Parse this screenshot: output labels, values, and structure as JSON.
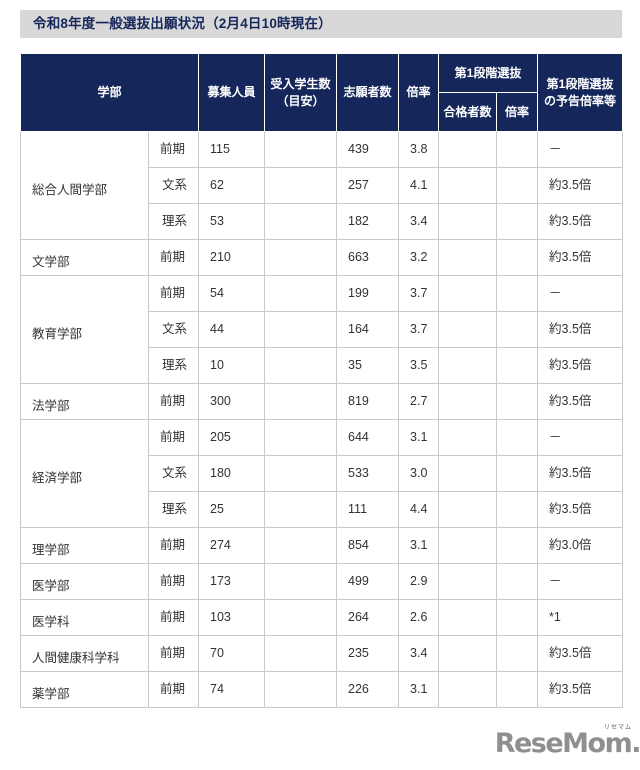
{
  "title": "令和8年度一般選抜出願状況（2月4日10時現在）",
  "colors": {
    "header_bg": "#15265b",
    "header_text": "#ffffff",
    "title_bar_bg": "#d8d8d8",
    "title_text": "#15265b",
    "body_border": "#c9c9c9",
    "faculty_cell_bg": "#f0f0f3",
    "body_text": "#333333",
    "logo_gray": "#8f8f8f"
  },
  "table": {
    "headers": {
      "gakubu": "学部",
      "capacity": "募集人員",
      "accepted_line1": "受入学生数",
      "accepted_line2": "（目安）",
      "applicants": "志願者数",
      "ratio": "倍率",
      "stage1": "第1段階選抜",
      "stage1_pass": "合格者数",
      "stage1_ratio": "倍率",
      "notice_line1": "第1段階選抜",
      "notice_line2": "の予告倍率等"
    },
    "rows": [
      {
        "faculty": "総合人間学部",
        "rowspan": 3,
        "period": "前期",
        "period_align": "left",
        "capacity": "115",
        "accepted": "",
        "applicants": "439",
        "ratio": "3.8",
        "pass": "",
        "pass_ratio": "",
        "notice": "－"
      },
      {
        "faculty": null,
        "period": "文系",
        "period_align": "right",
        "capacity": "62",
        "accepted": "",
        "applicants": "257",
        "ratio": "4.1",
        "pass": "",
        "pass_ratio": "",
        "notice": "約3.5倍"
      },
      {
        "faculty": null,
        "period": "理系",
        "period_align": "right",
        "capacity": "53",
        "accepted": "",
        "applicants": "182",
        "ratio": "3.4",
        "pass": "",
        "pass_ratio": "",
        "notice": "約3.5倍"
      },
      {
        "faculty": "文学部",
        "rowspan": 1,
        "period": "前期",
        "period_align": "left",
        "capacity": "210",
        "accepted": "",
        "applicants": "663",
        "ratio": "3.2",
        "pass": "",
        "pass_ratio": "",
        "notice": "約3.5倍"
      },
      {
        "faculty": "教育学部",
        "rowspan": 3,
        "period": "前期",
        "period_align": "left",
        "capacity": "54",
        "accepted": "",
        "applicants": "199",
        "ratio": "3.7",
        "pass": "",
        "pass_ratio": "",
        "notice": "－"
      },
      {
        "faculty": null,
        "period": "文系",
        "period_align": "right",
        "capacity": "44",
        "accepted": "",
        "applicants": "164",
        "ratio": "3.7",
        "pass": "",
        "pass_ratio": "",
        "notice": "約3.5倍"
      },
      {
        "faculty": null,
        "period": "理系",
        "period_align": "right",
        "capacity": "10",
        "accepted": "",
        "applicants": "35",
        "ratio": "3.5",
        "pass": "",
        "pass_ratio": "",
        "notice": "約3.5倍"
      },
      {
        "faculty": "法学部",
        "rowspan": 1,
        "period": "前期",
        "period_align": "left",
        "capacity": "300",
        "accepted": "",
        "applicants": "819",
        "ratio": "2.7",
        "pass": "",
        "pass_ratio": "",
        "notice": "約3.5倍"
      },
      {
        "faculty": "経済学部",
        "rowspan": 3,
        "period": "前期",
        "period_align": "left",
        "capacity": "205",
        "accepted": "",
        "applicants": "644",
        "ratio": "3.1",
        "pass": "",
        "pass_ratio": "",
        "notice": "－"
      },
      {
        "faculty": null,
        "period": "文系",
        "period_align": "right",
        "capacity": "180",
        "accepted": "",
        "applicants": "533",
        "ratio": "3.0",
        "pass": "",
        "pass_ratio": "",
        "notice": "約3.5倍"
      },
      {
        "faculty": null,
        "period": "理系",
        "period_align": "right",
        "capacity": "25",
        "accepted": "",
        "applicants": "111",
        "ratio": "4.4",
        "pass": "",
        "pass_ratio": "",
        "notice": "約3.5倍"
      },
      {
        "faculty": "理学部",
        "rowspan": 1,
        "period": "前期",
        "period_align": "left",
        "capacity": "274",
        "accepted": "",
        "applicants": "854",
        "ratio": "3.1",
        "pass": "",
        "pass_ratio": "",
        "notice": "約3.0倍"
      },
      {
        "faculty": "医学部",
        "rowspan": 1,
        "period": "前期",
        "period_align": "left",
        "capacity": "173",
        "accepted": "",
        "applicants": "499",
        "ratio": "2.9",
        "pass": "",
        "pass_ratio": "",
        "notice": "－"
      },
      {
        "faculty": "医学科",
        "rowspan": 1,
        "period": "前期",
        "period_align": "left",
        "capacity": "103",
        "accepted": "",
        "applicants": "264",
        "ratio": "2.6",
        "pass": "",
        "pass_ratio": "",
        "notice": "*1"
      },
      {
        "faculty": "人間健康科学科",
        "rowspan": 1,
        "period": "前期",
        "period_align": "left",
        "capacity": "70",
        "accepted": "",
        "applicants": "235",
        "ratio": "3.4",
        "pass": "",
        "pass_ratio": "",
        "notice": "約3.5倍"
      },
      {
        "faculty": "薬学部",
        "rowspan": 1,
        "period": "前期",
        "period_align": "left",
        "capacity": "74",
        "accepted": "",
        "applicants": "226",
        "ratio": "3.1",
        "pass": "",
        "pass_ratio": "",
        "notice": "約3.5倍"
      }
    ]
  },
  "logo": {
    "text": "ReseMom",
    "ruby": "リセマム",
    "suffix": "."
  }
}
